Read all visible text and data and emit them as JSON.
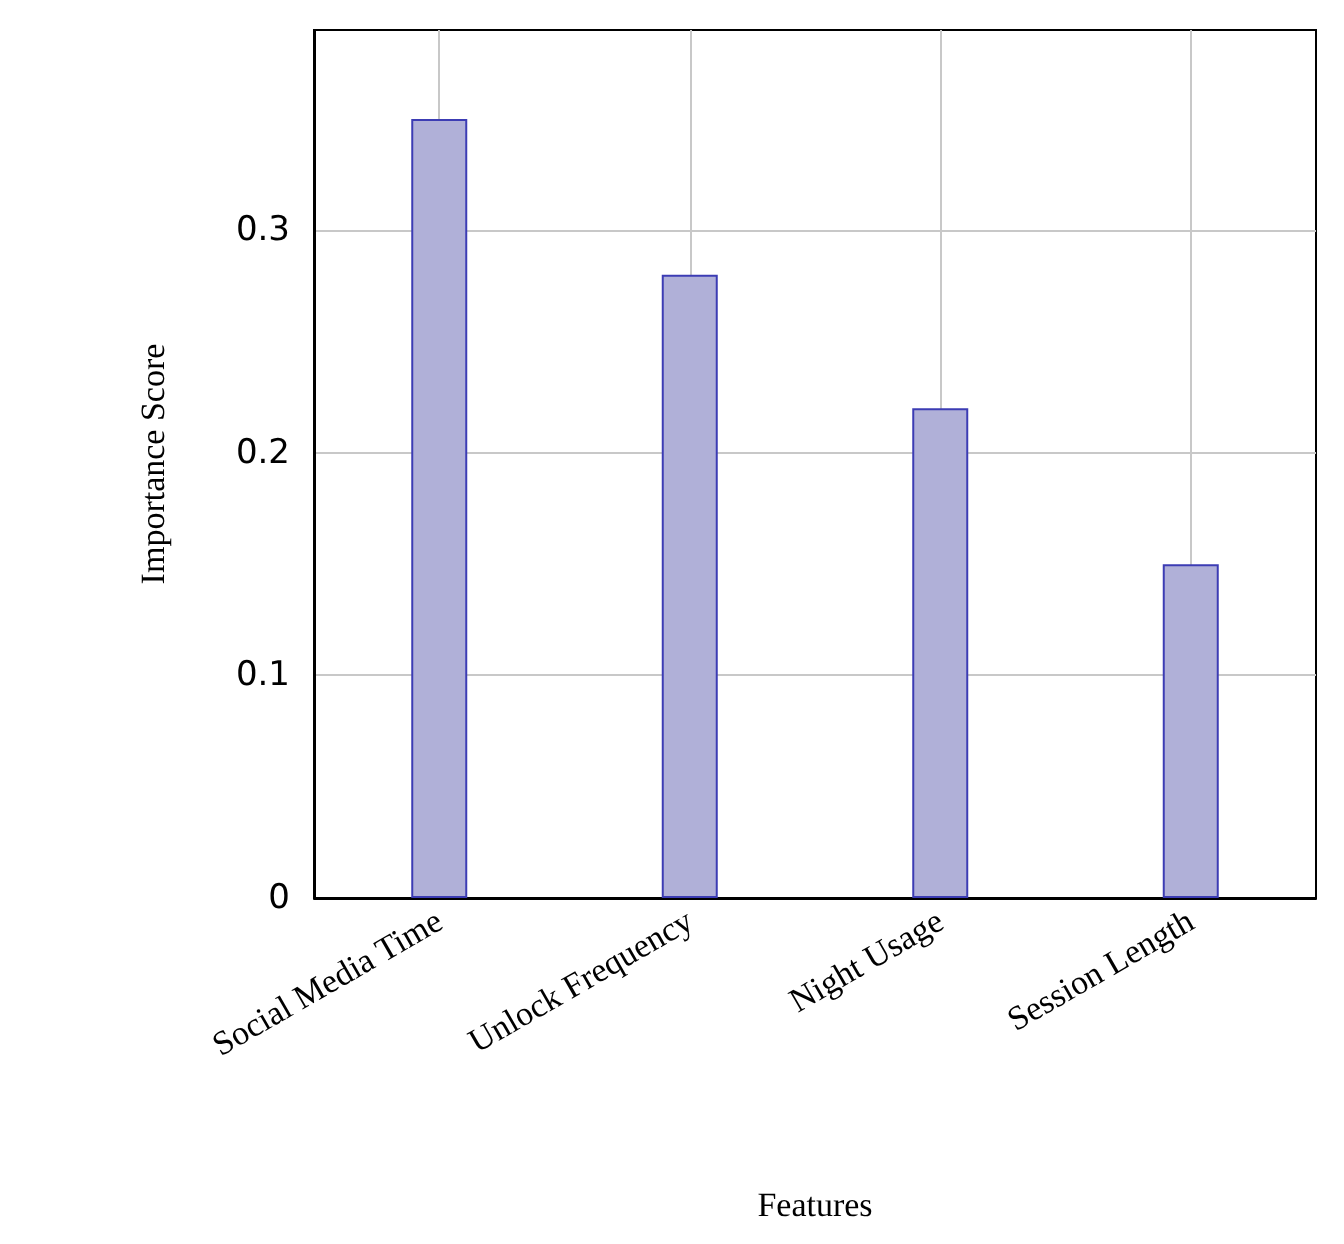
{
  "chart_data": {
    "type": "bar",
    "xlabel": "Features",
    "ylabel": "Importance Score",
    "categories": [
      "Social Media Time",
      "Unlock Frequency",
      "Night Usage",
      "Session Length"
    ],
    "values": [
      0.35,
      0.28,
      0.22,
      0.15
    ],
    "color": "#b0b0d8",
    "ylim": [
      0,
      0.39
    ],
    "yticks": [
      0,
      0.1,
      0.2,
      0.3
    ],
    "grid": true
  }
}
